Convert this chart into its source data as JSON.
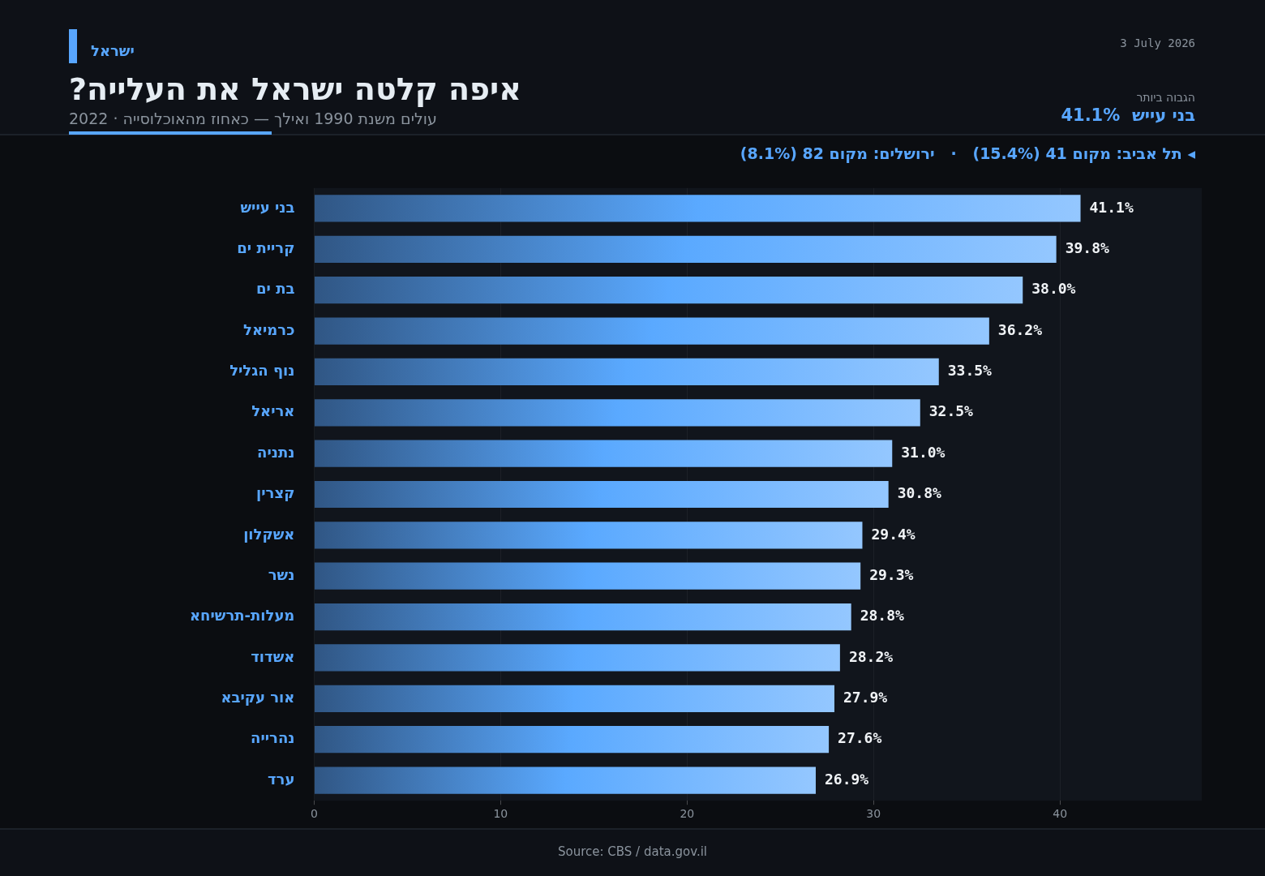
{
  "chart_data": {
    "type": "bar",
    "orientation": "horizontal",
    "title": "איפה קלטה ישראל את העלייה?",
    "subtitle": "עולים משנת 1990 ואילך — כאחוז מהאוכלוסייה · 2022",
    "annotations": [
      "ישראל",
      "3 July 2026",
      "הגבוה ביותר",
      "בני עייש  41.1%",
      "◂ תל אביב: מקום 41 (15.4%)   ·   ירושלים: מקום 82 (8.1%)",
      "Source: CBS / data.gov.il"
    ],
    "categories": [
      "בני עייש",
      "קריית ים",
      "בת ים",
      "כרמיאל",
      "נוף הגליל",
      "אריאל",
      "נתניה",
      "קצרין",
      "אשקלון",
      "נשר",
      "מעלות-תרשיחא",
      "אשדוד",
      "אור עקיבא",
      "נהרייה",
      "ערד"
    ],
    "values": [
      41.1,
      39.8,
      38.0,
      36.2,
      33.5,
      32.5,
      31.0,
      30.8,
      29.4,
      29.3,
      28.8,
      28.2,
      27.9,
      27.6,
      26.9
    ],
    "value_labels": [
      "41.1%",
      "39.8%",
      "38.0%",
      "36.2%",
      "33.5%",
      "32.5%",
      "31.0%",
      "30.8%",
      "29.4%",
      "29.3%",
      "28.8%",
      "28.2%",
      "27.9%",
      "27.6%",
      "26.9%"
    ],
    "color": "#5aa9ff",
    "xlim": [
      0,
      47.6
    ],
    "xticks": [
      0,
      10,
      20,
      30,
      40
    ],
    "grid": "x",
    "legend": false
  }
}
